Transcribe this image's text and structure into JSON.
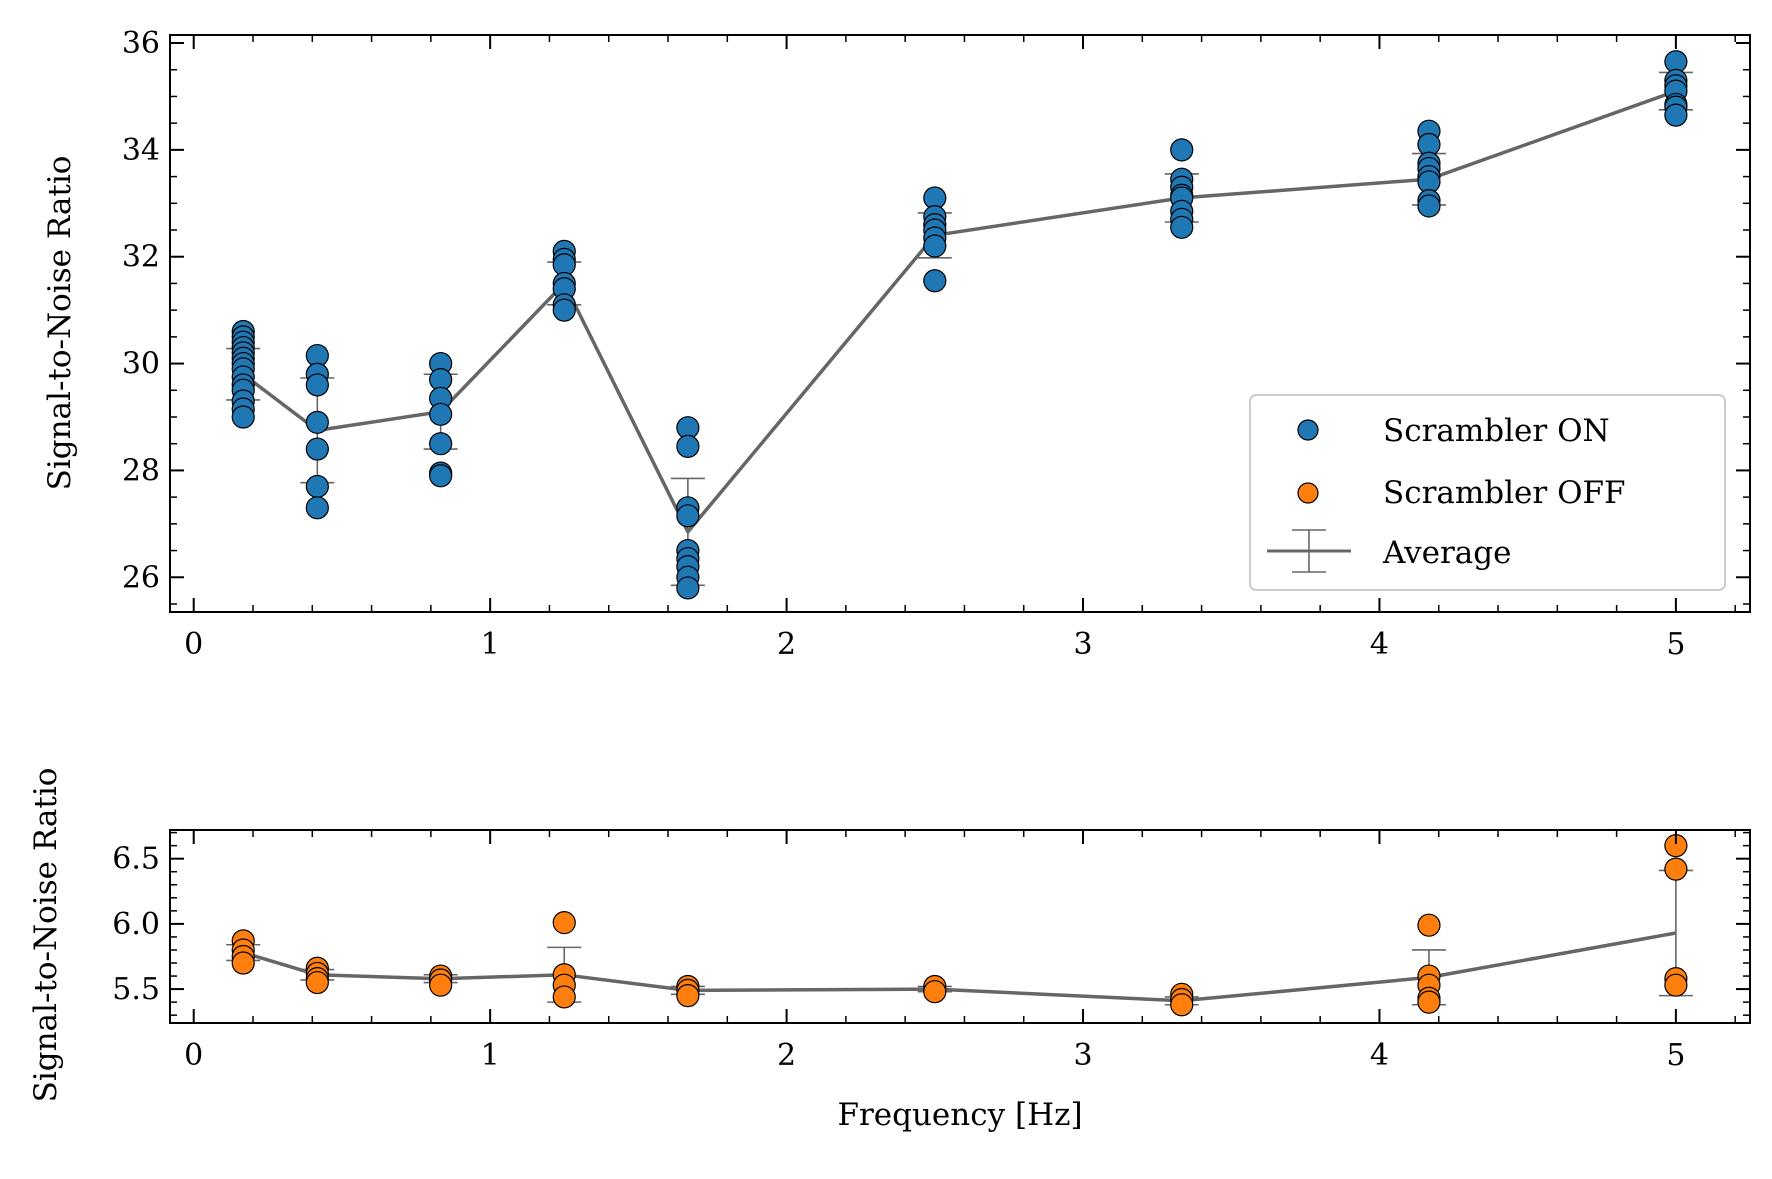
{
  "chart_data": [
    {
      "type": "scatter",
      "xlabel": "",
      "ylabel": "Signal-to-Noise Ratio",
      "xlim": [
        -0.08,
        5.25
      ],
      "ylim": [
        25.35,
        36.15
      ],
      "xticks": [
        0,
        1,
        2,
        3,
        4,
        5
      ],
      "yticks": [
        26,
        28,
        30,
        32,
        34,
        36
      ],
      "grid": false,
      "legend": {
        "position": "lower-right",
        "entries": [
          "Scrambler ON",
          "Scrambler OFF",
          "Average"
        ]
      },
      "series": [
        {
          "name": "Scrambler ON",
          "color": "#1f77b4",
          "points": [
            {
              "x": 0.167,
              "y": [
                30.6,
                30.5,
                30.4,
                30.3,
                30.2,
                30.1,
                30.0,
                29.9,
                29.75,
                29.6,
                29.5,
                29.3,
                29.15,
                29.0
              ]
            },
            {
              "x": 0.417,
              "y": [
                30.15,
                29.8,
                29.6,
                28.9,
                28.4,
                27.7,
                27.3
              ]
            },
            {
              "x": 0.833,
              "y": [
                30.0,
                29.7,
                29.35,
                29.05,
                28.5,
                27.95,
                27.9
              ]
            },
            {
              "x": 1.25,
              "y": [
                32.1,
                31.95,
                31.85,
                31.5,
                31.4,
                31.1,
                31.0
              ]
            },
            {
              "x": 1.667,
              "y": [
                28.8,
                28.45,
                27.3,
                27.15,
                26.5,
                26.35,
                26.2,
                26.0,
                25.8
              ]
            },
            {
              "x": 2.5,
              "y": [
                33.1,
                32.75,
                32.6,
                32.5,
                32.35,
                32.2,
                31.55
              ]
            },
            {
              "x": 3.333,
              "y": [
                34.0,
                33.45,
                33.3,
                33.15,
                33.1,
                32.85,
                32.7,
                32.55
              ]
            },
            {
              "x": 4.167,
              "y": [
                34.35,
                34.1,
                33.75,
                33.65,
                33.5,
                33.4,
                33.05,
                32.95
              ]
            },
            {
              "x": 5.0,
              "y": [
                35.65,
                35.3,
                35.2,
                35.1,
                34.85,
                34.8,
                34.65
              ]
            }
          ]
        },
        {
          "name": "Average",
          "color": "#666666",
          "x": [
            0.167,
            0.417,
            0.833,
            1.25,
            1.667,
            2.5,
            3.333,
            4.167,
            5.0
          ],
          "y": [
            29.8,
            28.75,
            29.1,
            31.5,
            26.85,
            32.4,
            33.1,
            33.45,
            35.1
          ],
          "err": [
            0.48,
            0.98,
            0.7,
            0.4,
            1.0,
            0.42,
            0.45,
            0.48,
            0.35
          ]
        }
      ]
    },
    {
      "type": "scatter",
      "xlabel": "Frequency [Hz]",
      "ylabel": "Signal-to-Noise Ratio",
      "xlim": [
        -0.08,
        5.25
      ],
      "ylim": [
        5.24,
        6.72
      ],
      "xticks": [
        0,
        1,
        2,
        3,
        4,
        5
      ],
      "yticks": [
        5.5,
        6.0,
        6.5
      ],
      "grid": false,
      "series": [
        {
          "name": "Scrambler OFF",
          "color": "#ff7f0e",
          "points": [
            {
              "x": 0.167,
              "y": [
                5.87,
                5.8,
                5.75,
                5.7
              ]
            },
            {
              "x": 0.417,
              "y": [
                5.66,
                5.62,
                5.58,
                5.55
              ]
            },
            {
              "x": 0.833,
              "y": [
                5.6,
                5.57,
                5.53
              ]
            },
            {
              "x": 1.25,
              "y": [
                6.01,
                5.61,
                5.53,
                5.44
              ]
            },
            {
              "x": 1.667,
              "y": [
                5.52,
                5.49,
                5.45
              ]
            },
            {
              "x": 2.5,
              "y": [
                5.52,
                5.48
              ]
            },
            {
              "x": 3.333,
              "y": [
                5.46,
                5.42,
                5.38
              ]
            },
            {
              "x": 4.167,
              "y": [
                5.99,
                5.6,
                5.53,
                5.43,
                5.4
              ]
            },
            {
              "x": 5.0,
              "y": [
                6.6,
                6.42,
                5.58,
                5.53
              ]
            }
          ]
        },
        {
          "name": "Average",
          "color": "#666666",
          "x": [
            0.167,
            0.417,
            0.833,
            1.25,
            1.667,
            2.5,
            3.333,
            4.167,
            5.0
          ],
          "y": [
            5.78,
            5.61,
            5.58,
            5.61,
            5.49,
            5.5,
            5.41,
            5.59,
            5.93
          ],
          "err": [
            0.06,
            0.04,
            0.03,
            0.21,
            0.03,
            0.02,
            0.03,
            0.21,
            0.48
          ]
        }
      ]
    }
  ]
}
